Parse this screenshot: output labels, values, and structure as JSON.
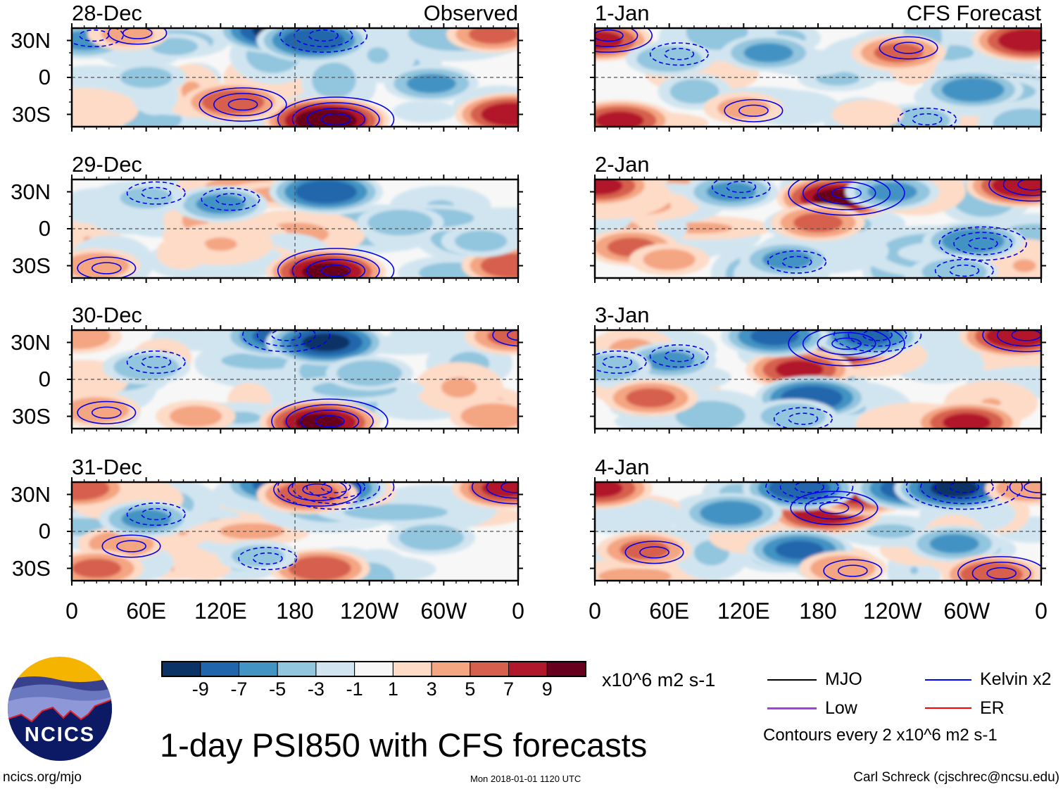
{
  "figure": {
    "title": "1-day PSI850 with CFS forecasts",
    "timestamp": "Mon 2018-01-01 1120 UTC",
    "site": "ncics.org/mjo",
    "credit": "Carl Schreck (cjschrec@ncsu.edu)",
    "logo_text": "NCICS"
  },
  "columns": {
    "left_label": "Observed",
    "right_label": "CFS Forecast"
  },
  "axes": {
    "y_ticks": [
      "30N",
      "0",
      "30S"
    ],
    "x_ticks": [
      "0",
      "60E",
      "120E",
      "180",
      "120W",
      "60W",
      "0"
    ],
    "lat_range": [
      -40,
      40
    ],
    "lon_range": [
      0,
      360
    ]
  },
  "colorbar": {
    "labels": [
      "-9",
      "-7",
      "-5",
      "-3",
      "-1",
      "1",
      "3",
      "5",
      "7",
      "9"
    ],
    "colors": [
      "#0b3366",
      "#2166ac",
      "#4393c3",
      "#92c5de",
      "#d1e5f0",
      "#f7f7f7",
      "#fddbc7",
      "#f4a582",
      "#d6604d",
      "#b2182b",
      "#67001f"
    ],
    "units": "x10^6 m2 s-1"
  },
  "legend": {
    "items": [
      {
        "label": "MJO",
        "color": "#000000"
      },
      {
        "label": "Kelvin x2",
        "color": "#0000ff"
      },
      {
        "label": "Low",
        "color": "#a040e0"
      },
      {
        "label": "ER",
        "color": "#ff0000"
      }
    ],
    "note": "Contours every 2 x10^6 m2 s-1"
  },
  "panels": [
    {
      "date": "28-Dec",
      "col": 0,
      "row": 0,
      "features": [
        [
          205,
          -35,
          11
        ],
        [
          355,
          -30,
          9
        ],
        [
          130,
          -20,
          7
        ],
        [
          165,
          38,
          -10
        ],
        [
          195,
          30,
          -9
        ],
        [
          290,
          -5,
          -6
        ],
        [
          10,
          30,
          -6
        ],
        [
          340,
          35,
          6
        ],
        [
          45,
          35,
          4
        ],
        [
          60,
          0,
          -4
        ]
      ]
    },
    {
      "date": "29-Dec",
      "col": 0,
      "row": 1,
      "features": [
        [
          205,
          -35,
          10
        ],
        [
          355,
          -30,
          7
        ],
        [
          20,
          -30,
          5
        ],
        [
          205,
          30,
          -9
        ],
        [
          120,
          20,
          -6
        ],
        [
          265,
          5,
          -5
        ],
        [
          60,
          25,
          -4
        ],
        [
          330,
          -10,
          -4
        ]
      ]
    },
    {
      "date": "30-Dec",
      "col": 0,
      "row": 2,
      "features": [
        [
          165,
          35,
          -8
        ],
        [
          205,
          30,
          -10
        ],
        [
          200,
          -35,
          10
        ],
        [
          340,
          -30,
          5
        ],
        [
          20,
          -25,
          5
        ],
        [
          100,
          -30,
          4
        ],
        [
          60,
          10,
          -5
        ],
        [
          240,
          5,
          -5
        ],
        [
          355,
          35,
          6
        ],
        [
          5,
          35,
          5
        ]
      ]
    },
    {
      "date": "31-Dec",
      "col": 0,
      "row": 3,
      "features": [
        [
          205,
          35,
          -10
        ],
        [
          165,
          38,
          -8
        ],
        [
          190,
          30,
          7
        ],
        [
          200,
          -30,
          7
        ],
        [
          350,
          35,
          8
        ],
        [
          5,
          35,
          7
        ],
        [
          40,
          -10,
          5
        ],
        [
          20,
          -30,
          6
        ],
        [
          60,
          10,
          -6
        ],
        [
          290,
          -5,
          -5
        ],
        [
          150,
          -20,
          -4
        ]
      ]
    },
    {
      "date": "1-Jan",
      "col": 1,
      "row": 0,
      "features": [
        [
          3,
          30,
          8
        ],
        [
          350,
          30,
          9
        ],
        [
          245,
          20,
          6
        ],
        [
          140,
          20,
          -6
        ],
        [
          60,
          15,
          -5
        ],
        [
          305,
          -10,
          -7
        ],
        [
          120,
          -25,
          4
        ],
        [
          20,
          -35,
          8
        ],
        [
          260,
          -35,
          -5
        ],
        [
          220,
          -30,
          3
        ]
      ]
    },
    {
      "date": "2-Jan",
      "col": 1,
      "row": 1,
      "features": [
        [
          195,
          25,
          10
        ],
        [
          180,
          5,
          6
        ],
        [
          345,
          35,
          9
        ],
        [
          3,
          35,
          8
        ],
        [
          110,
          30,
          -6
        ],
        [
          240,
          30,
          -6
        ],
        [
          305,
          -10,
          -7
        ],
        [
          30,
          -15,
          6
        ],
        [
          155,
          -25,
          -6
        ],
        [
          60,
          -25,
          4
        ],
        [
          290,
          -35,
          -5
        ]
      ]
    },
    {
      "date": "3-Jan",
      "col": 1,
      "row": 2,
      "features": [
        [
          195,
          25,
          10
        ],
        [
          165,
          8,
          8
        ],
        [
          340,
          35,
          9
        ],
        [
          175,
          -15,
          -9
        ],
        [
          220,
          35,
          -8
        ],
        [
          145,
          35,
          -8
        ],
        [
          60,
          15,
          -6
        ],
        [
          45,
          -15,
          6
        ],
        [
          10,
          10,
          -5
        ],
        [
          300,
          -35,
          8
        ],
        [
          160,
          -30,
          -5
        ]
      ]
    },
    {
      "date": "4-Jan",
      "col": 1,
      "row": 3,
      "features": [
        [
          185,
          15,
          9
        ],
        [
          215,
          30,
          8
        ],
        [
          165,
          35,
          -9
        ],
        [
          255,
          35,
          -9
        ],
        [
          290,
          35,
          -10
        ],
        [
          110,
          15,
          -7
        ],
        [
          40,
          -15,
          6
        ],
        [
          165,
          -15,
          -8
        ],
        [
          200,
          -30,
          5
        ],
        [
          290,
          -10,
          -6
        ],
        [
          320,
          -35,
          7
        ],
        [
          3,
          35,
          8
        ],
        [
          350,
          35,
          5
        ]
      ]
    }
  ]
}
